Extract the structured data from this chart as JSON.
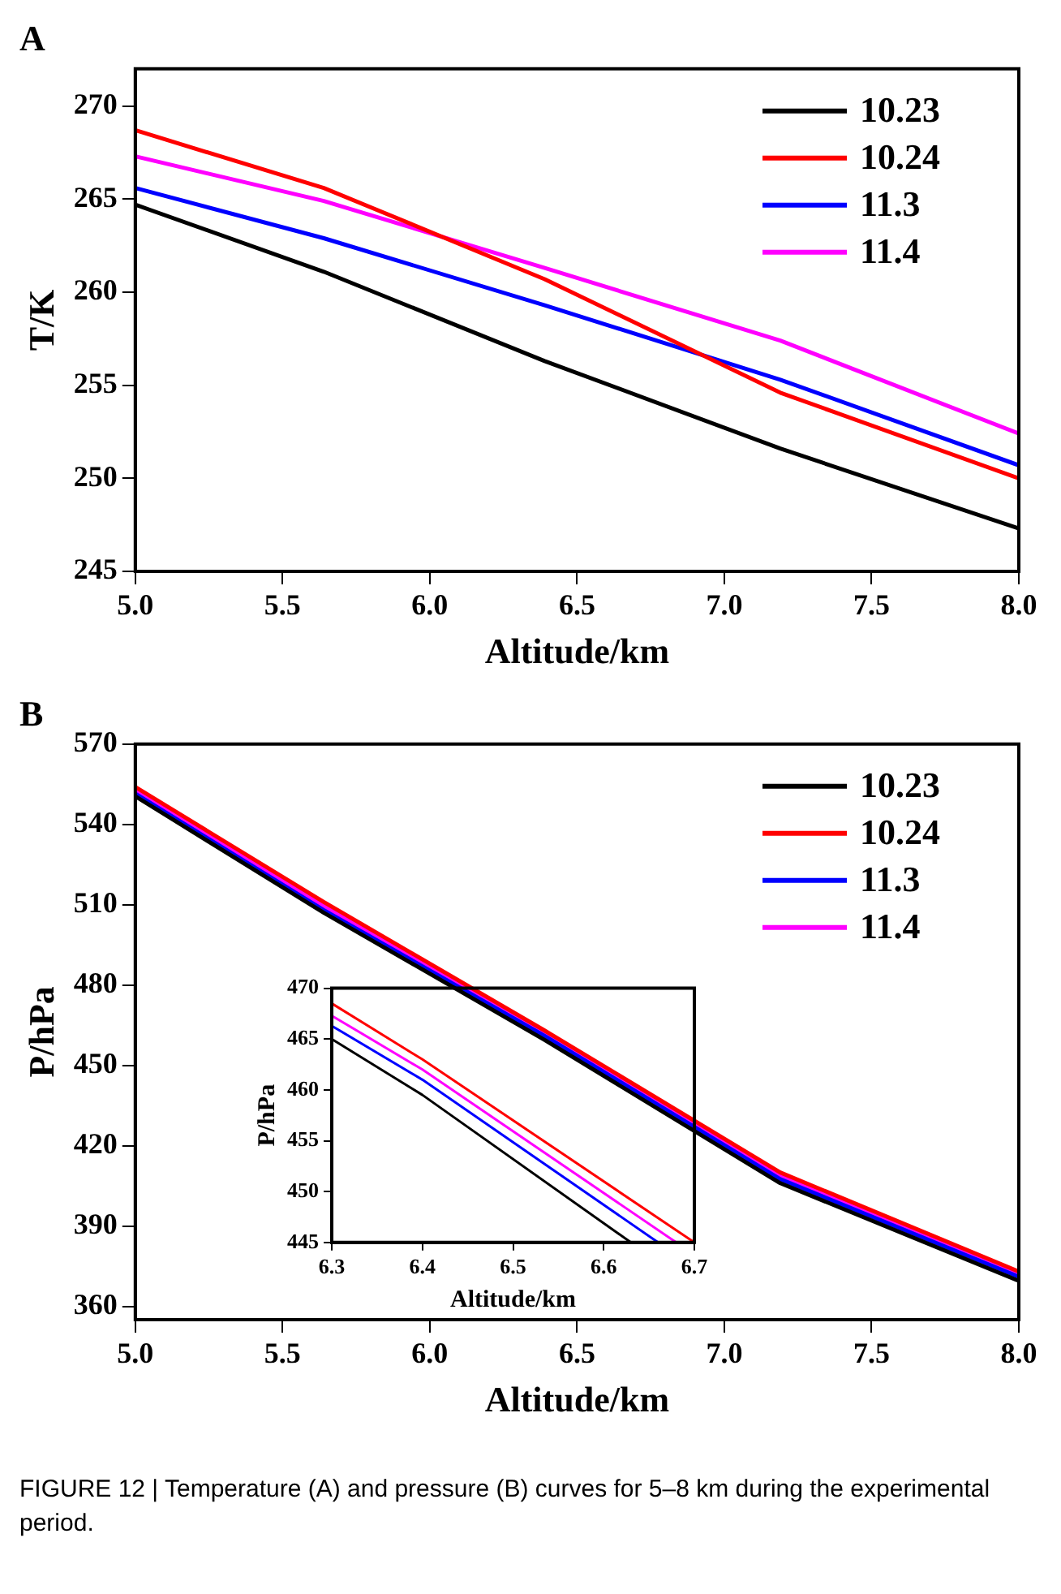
{
  "chart_data": [
    {
      "type": "line",
      "title": "A",
      "xlabel": "Altitude/km",
      "ylabel": "T/K",
      "x": [
        5.0,
        5.64,
        6.39,
        7.19,
        8.0
      ],
      "xlim": [
        5.0,
        8.0
      ],
      "xticks": [
        {
          "value": 5.0,
          "label": "5.0"
        },
        5.5,
        {
          "value": 6.0,
          "label": "6.0"
        },
        6.5,
        {
          "value": 7.0,
          "label": "7.0"
        },
        7.5,
        {
          "value": 8.0,
          "label": "8.0"
        }
      ],
      "ylim": [
        245,
        272
      ],
      "yticks": [
        245,
        250,
        255,
        260,
        265,
        270
      ],
      "legend": "top right",
      "grid": false,
      "marker": "none",
      "line_style": "solid",
      "series": [
        {
          "name": "10.23",
          "color": "#000000",
          "values": [
            264.7,
            261.1,
            256.3,
            251.6,
            247.3
          ]
        },
        {
          "name": "10.24",
          "color": "#ff0000",
          "values": [
            268.7,
            265.6,
            260.7,
            254.6,
            250.0
          ]
        },
        {
          "name": "11.3",
          "color": "#0000ff",
          "values": [
            265.6,
            262.9,
            259.3,
            255.3,
            250.7
          ]
        },
        {
          "name": "11.4",
          "color": "#ff00ff",
          "values": [
            267.3,
            264.9,
            261.3,
            257.4,
            252.4
          ]
        }
      ]
    },
    {
      "type": "line",
      "title": "B",
      "xlabel": "Altitude/km",
      "ylabel": "P/hPa",
      "x": [
        5.0,
        5.64,
        6.39,
        7.19,
        8.0
      ],
      "xlim": [
        5.0,
        8.0
      ],
      "xticks": [
        {
          "value": 5.0,
          "label": "5.0"
        },
        5.5,
        {
          "value": 6.0,
          "label": "6.0"
        },
        6.5,
        {
          "value": 7.0,
          "label": "7.0"
        },
        7.5,
        {
          "value": 8.0,
          "label": "8.0"
        }
      ],
      "ylim": [
        355,
        570
      ],
      "yticks": [
        360,
        390,
        420,
        450,
        480,
        510,
        540,
        570
      ],
      "legend": "top right",
      "grid": false,
      "marker": "none",
      "line_style": "solid",
      "annotations": [
        "FIGURE 12 | Temperature (A) and pressure (B) curves for 5–8 km during the experimental period."
      ],
      "series": [
        {
          "name": "10.23",
          "color": "#000000",
          "values": [
            550.5,
            507,
            459.5,
            406,
            369.5
          ]
        },
        {
          "name": "10.24",
          "color": "#ff0000",
          "values": [
            554,
            511,
            463,
            410,
            373
          ]
        },
        {
          "name": "11.3",
          "color": "#0000ff",
          "values": [
            551.5,
            508,
            461,
            407.5,
            371
          ]
        },
        {
          "name": "11.4",
          "color": "#ff00ff",
          "values": [
            552.5,
            509.5,
            462,
            409,
            372
          ]
        }
      ]
    },
    {
      "type": "line",
      "xlabel": "Altitude/km",
      "ylabel": "P/hPa",
      "xlim": [
        6.3,
        6.7
      ],
      "xticks": [
        6.3,
        6.4,
        6.5,
        6.6,
        6.7
      ],
      "ylim": [
        445,
        470
      ],
      "yticks": [
        445,
        450,
        455,
        460,
        465,
        470
      ],
      "grid": false,
      "marker": "none",
      "line_style": "solid",
      "series": [
        {
          "color": "#000000",
          "x": [
            6.3,
            6.4,
            6.63
          ],
          "values": [
            465,
            459.5,
            445
          ]
        },
        {
          "color": "#ff0000",
          "x": [
            6.3,
            6.4,
            6.7
          ],
          "values": [
            468.5,
            463,
            445
          ]
        },
        {
          "color": "#0000ff",
          "x": [
            6.3,
            6.4,
            6.66
          ],
          "values": [
            466.3,
            461,
            445
          ]
        },
        {
          "color": "#ff00ff",
          "x": [
            6.3,
            6.4,
            6.68
          ],
          "values": [
            467.3,
            462,
            445
          ]
        }
      ]
    }
  ]
}
